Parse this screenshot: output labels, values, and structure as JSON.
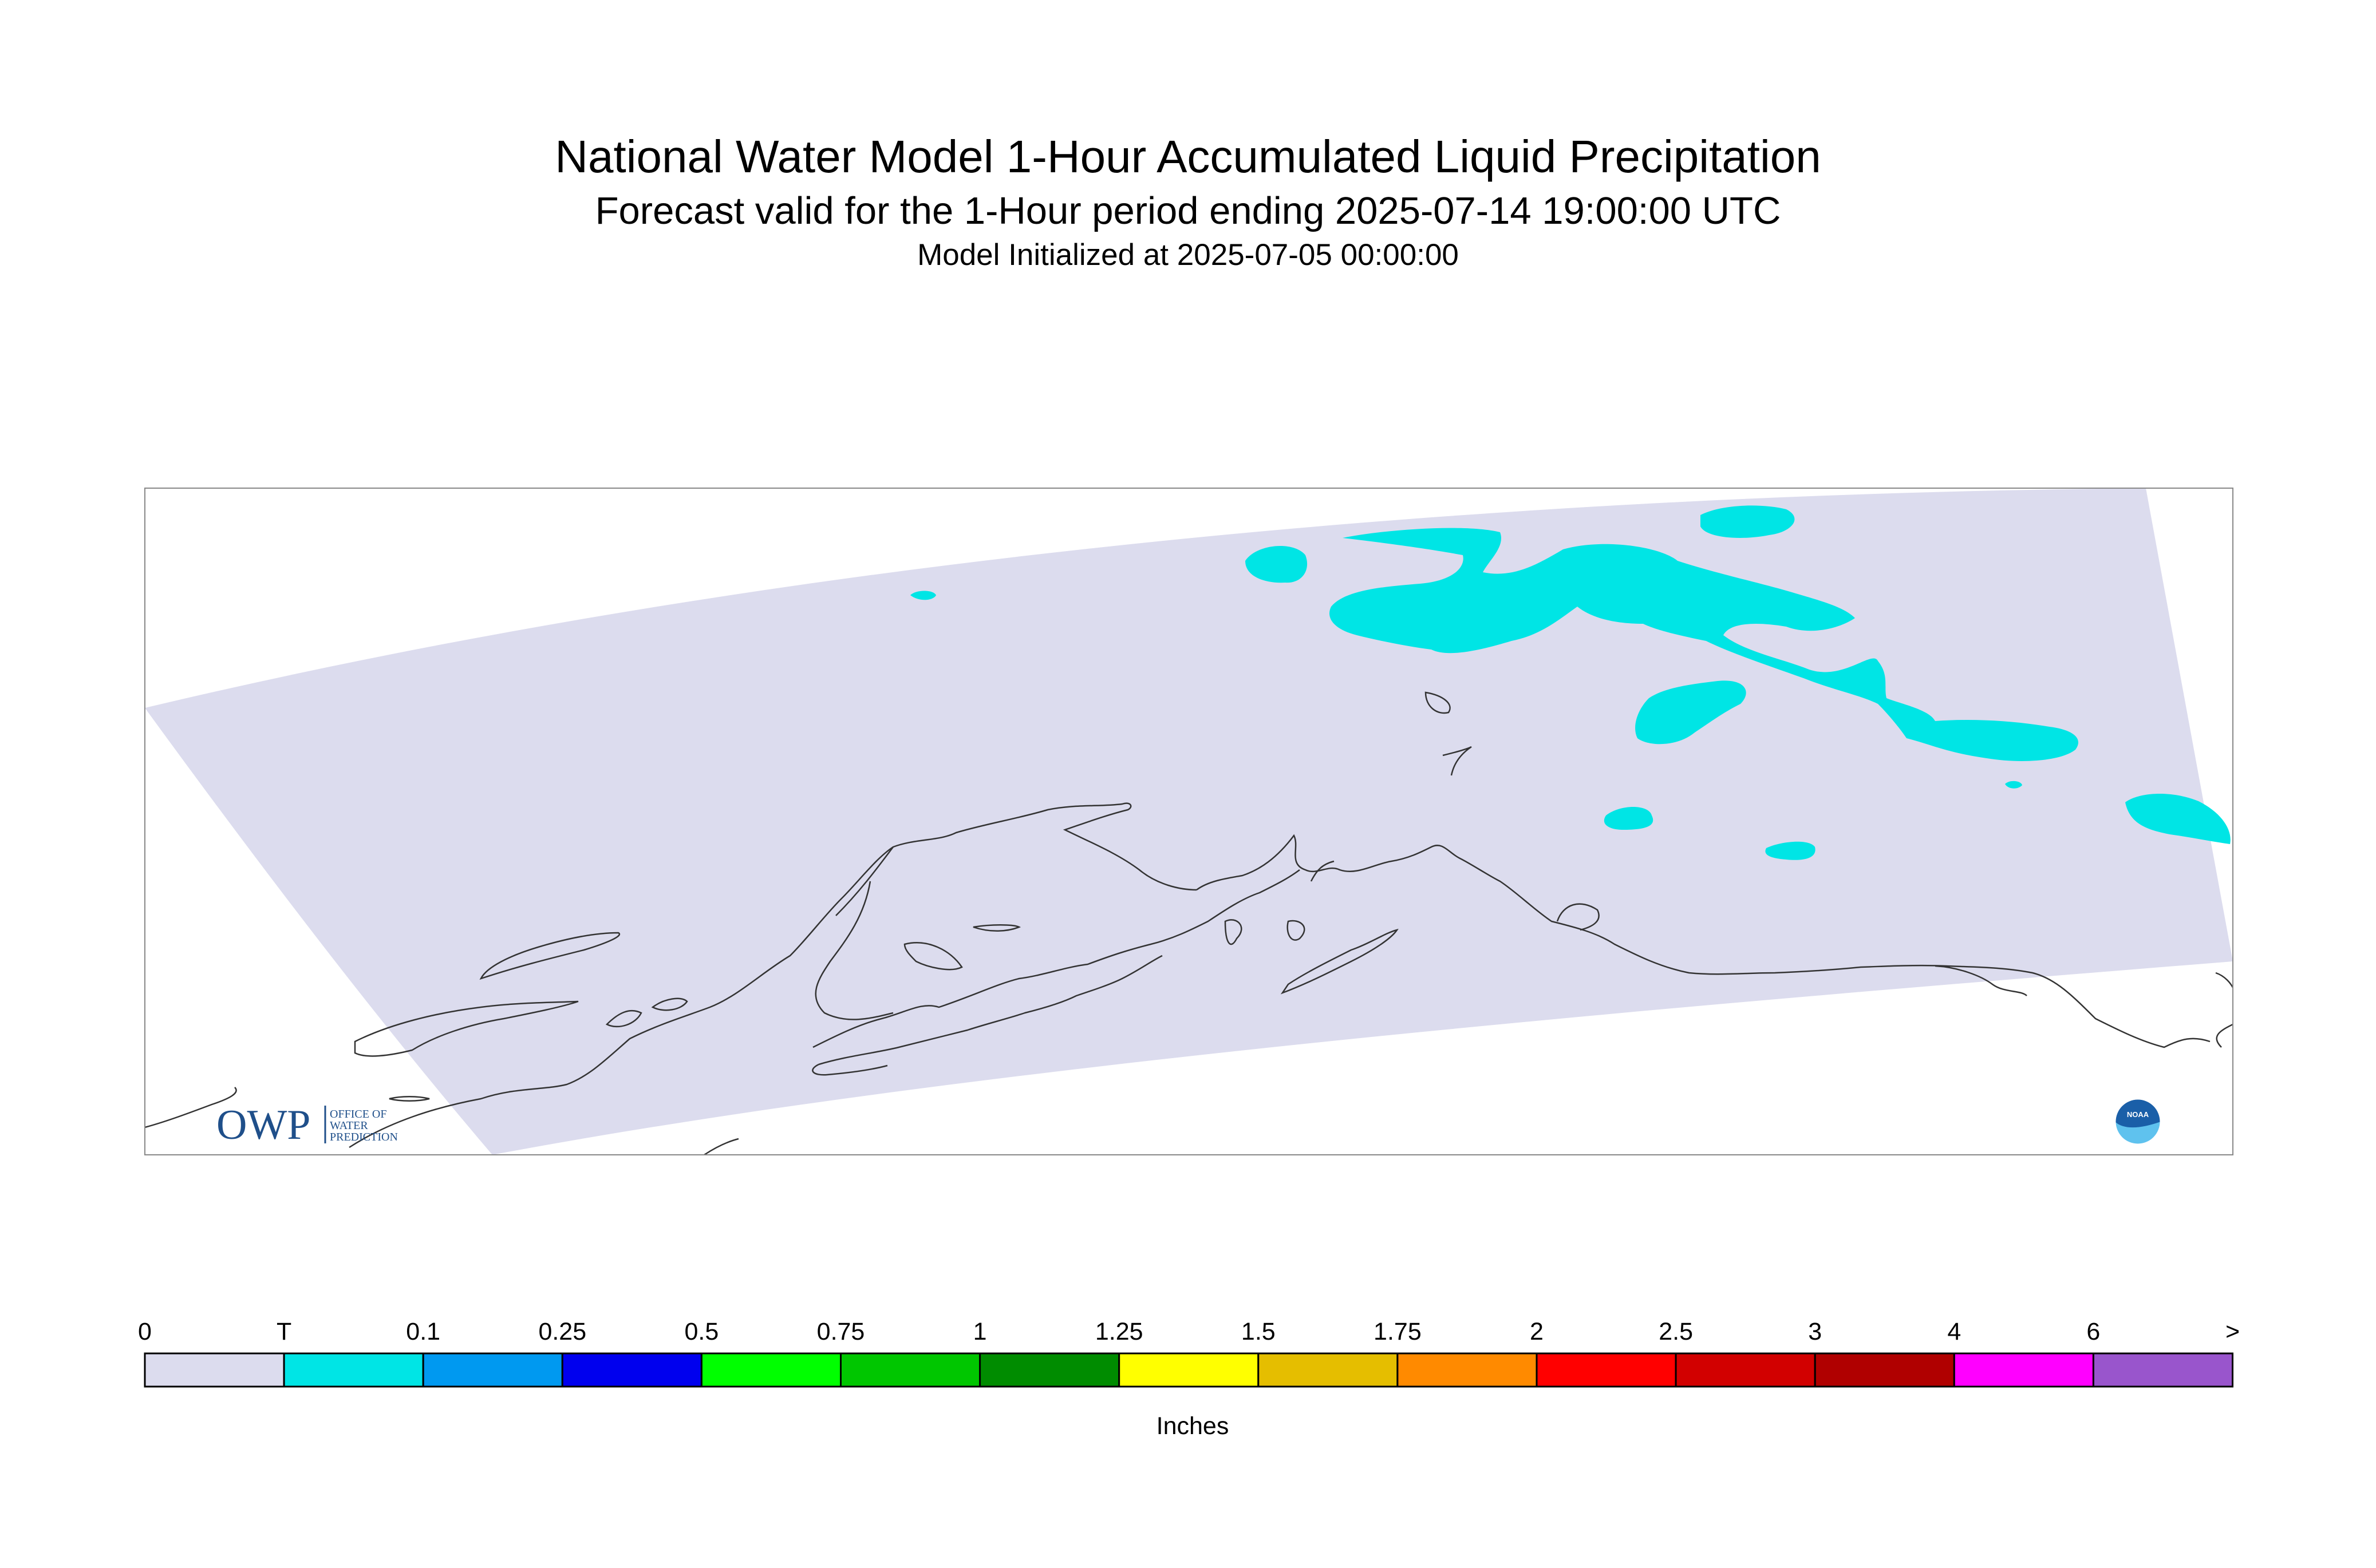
{
  "titles": {
    "main": "National Water Model 1-Hour Accumulated Liquid Precipitation",
    "valid": "Forecast valid for the 1-Hour period ending 2025-07-14 19:00:00 UTC",
    "init": "Model Initialized at 2025-07-05 00:00:00"
  },
  "logos": {
    "owp_mark": "OWP",
    "owp_line1": "OFFICE OF",
    "owp_line2": "WATER",
    "owp_line3": "PREDICTION",
    "noaa": "NOAA"
  },
  "colorbar": {
    "unit": "Inches",
    "ticks": [
      "0",
      "T",
      "0.1",
      "0.25",
      "0.5",
      "0.75",
      "1",
      "1.25",
      "1.5",
      "1.75",
      "2",
      "2.5",
      "3",
      "4",
      "6",
      ">"
    ],
    "colors": [
      "#dcdcee",
      "#00e5e5",
      "#0099f0",
      "#0000ee",
      "#00ff00",
      "#00c600",
      "#008c00",
      "#ffff00",
      "#e5be00",
      "#ff8a00",
      "#ff0000",
      "#d20000",
      "#b00000",
      "#ff00ff",
      "#9955cc"
    ]
  },
  "map": {
    "domain_fill": "#dcdcee",
    "precip_fill": "#00e5e5",
    "coast_color": "#333333",
    "frame_color": "#888888"
  }
}
